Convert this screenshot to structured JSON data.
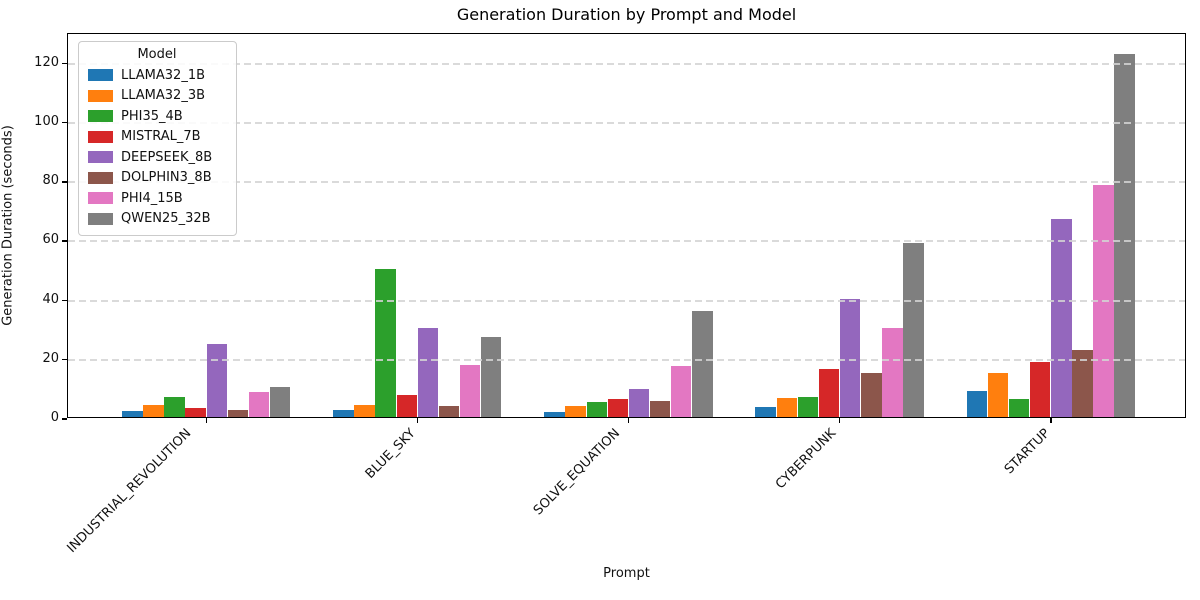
{
  "chart_data": {
    "type": "bar",
    "title": "Generation Duration by Prompt and Model",
    "xlabel": "Prompt",
    "ylabel": "Generation Duration (seconds)",
    "categories": [
      "INDUSTRIAL_REVOLUTION",
      "BLUE_SKY",
      "SOLVE_EQUATION",
      "CYBERPUNK",
      "STARTUP"
    ],
    "series": [
      {
        "name": "LLAMA32_1B",
        "color": "#1f77b4",
        "values": [
          2.2,
          2.4,
          1.7,
          3.5,
          8.8
        ]
      },
      {
        "name": "LLAMA32_3B",
        "color": "#ff7f0e",
        "values": [
          3.9,
          4.0,
          3.7,
          6.3,
          14.8
        ]
      },
      {
        "name": "PHI35_4B",
        "color": "#2ca02c",
        "values": [
          6.8,
          50.0,
          5.2,
          6.8,
          6.2
        ]
      },
      {
        "name": "MISTRAL_7B",
        "color": "#d62728",
        "values": [
          3.1,
          7.5,
          6.0,
          16.2,
          18.6
        ]
      },
      {
        "name": "DEEPSEEK_8B",
        "color": "#9467bd",
        "values": [
          24.8,
          30.0,
          9.5,
          39.7,
          66.8
        ]
      },
      {
        "name": "DOLPHIN3_8B",
        "color": "#8c564b",
        "values": [
          2.5,
          3.7,
          5.3,
          14.9,
          22.7
        ]
      },
      {
        "name": "PHI4_15B",
        "color": "#e377c2",
        "values": [
          8.6,
          17.6,
          17.1,
          29.9,
          78.5
        ]
      },
      {
        "name": "QWEN25_32B",
        "color": "#7f7f7f",
        "values": [
          10.2,
          27.0,
          35.8,
          58.8,
          122.7
        ]
      }
    ],
    "ylim": [
      0,
      130
    ],
    "yticks": [
      0,
      20,
      40,
      60,
      80,
      100,
      120
    ],
    "grid": "horizontal-dashed",
    "grid_color": "#d4d4d4",
    "x_tick_rotation": 45,
    "legend": {
      "title": "Model",
      "position": "upper left"
    }
  }
}
